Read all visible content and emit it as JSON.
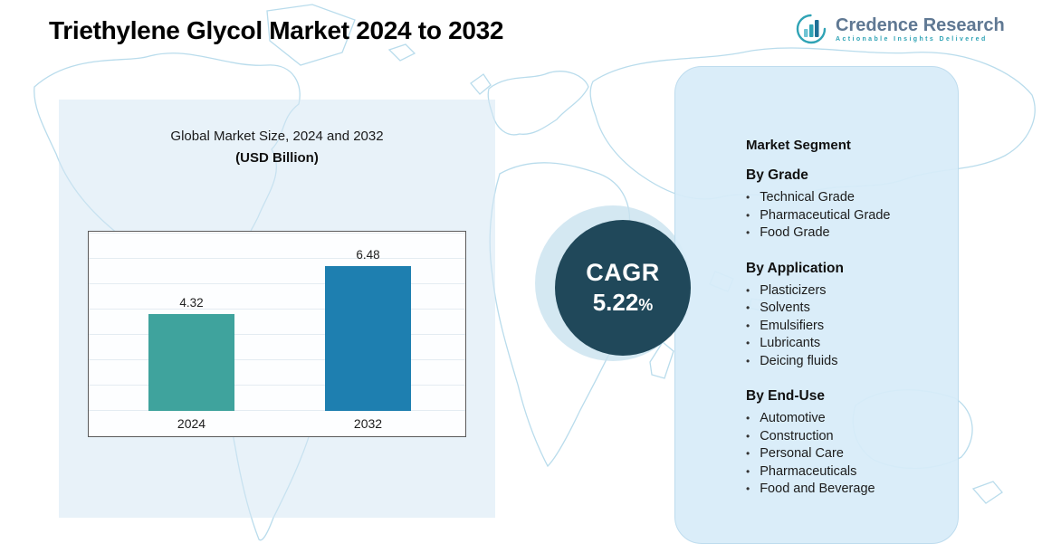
{
  "page": {
    "title": "Triethylene Glycol Market 2024  to 2032"
  },
  "logo": {
    "name": "Credence Research",
    "tagline": "Actionable Insights Delivered"
  },
  "chart_panel": {
    "subtitle_line1": "Global Market Size, 2024 and 2032",
    "subtitle_line2": "(USD Billion)"
  },
  "chart_data": {
    "type": "bar",
    "title": "Global Market Size, 2024 and 2032 (USD Billion)",
    "categories": [
      "2024",
      "2032"
    ],
    "values": [
      4.32,
      6.48
    ],
    "series": [
      {
        "name": "Market Size (USD Billion)",
        "values": [
          4.32,
          6.48
        ]
      }
    ],
    "xlabel": "",
    "ylabel": "",
    "ylim": [
      0,
      8
    ],
    "grid": true,
    "legend": false,
    "bar_colors": [
      "#3fa39d",
      "#1e7fb0"
    ]
  },
  "cagr": {
    "label": "CAGR",
    "value": "5.22",
    "percent_sign": "%"
  },
  "segments": {
    "heading": "Market Segment",
    "groups": [
      {
        "title": "By Grade",
        "items": [
          "Technical Grade",
          "Pharmaceutical Grade",
          "Food Grade"
        ]
      },
      {
        "title": "By Application",
        "items": [
          "Plasticizers",
          "Solvents",
          "Emulsifiers",
          "Lubricants",
          "Deicing fluids"
        ]
      },
      {
        "title": "By End-Use",
        "items": [
          "Automotive",
          "Construction",
          "Personal Care",
          "Pharmaceuticals",
          "Food and Beverage"
        ]
      }
    ]
  },
  "colors": {
    "bar_2024": "#3fa39d",
    "bar_2032": "#1e7fb0",
    "cagr_circle": "#20485a",
    "panel_bg": "#d7ebf8",
    "accent_teal": "#2fa3b5",
    "map_line": "#b9dcec"
  }
}
